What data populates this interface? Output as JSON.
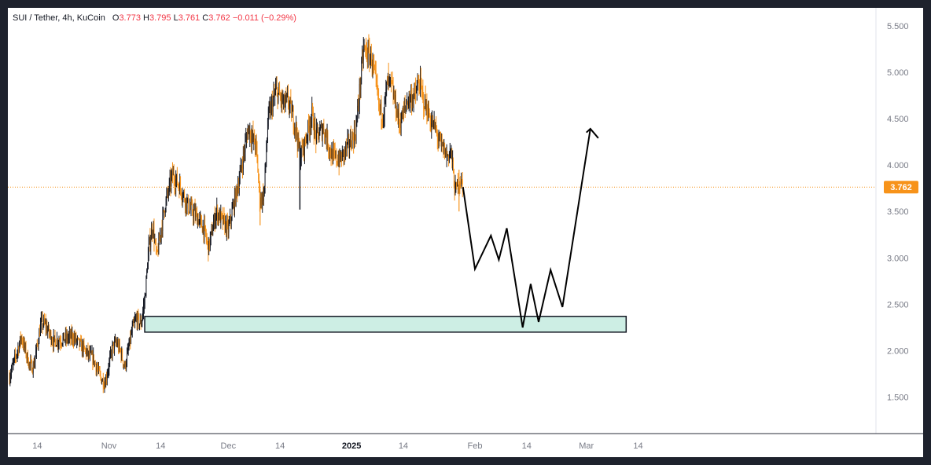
{
  "header": {
    "symbol": "SUI / Tether, 4h, KuCoin",
    "o_label": "O",
    "o_value": "3.773",
    "h_label": "H",
    "h_value": "3.795",
    "l_label": "L",
    "l_value": "3.761",
    "c_label": "C",
    "c_value": "3.762",
    "change": "−0.011 (−0.29%)"
  },
  "colors": {
    "up": "#131722",
    "down": "#f7931a",
    "price_line": "#f7931a",
    "zone_fill": "#cdeee4",
    "zone_stroke": "#131722",
    "projection": "#000000",
    "axis_text": "#787b86"
  },
  "chart_data": {
    "type": "candlestick",
    "symbol": "SUI / Tether",
    "interval": "4h",
    "exchange": "KuCoin",
    "last_price": 3.762,
    "last_price_label": "3.762",
    "y_axis": {
      "ylim": [
        1.2,
        5.6
      ],
      "ticks": [
        {
          "value": 1.5,
          "label": "1.500"
        },
        {
          "value": 2.0,
          "label": "2.000"
        },
        {
          "value": 2.5,
          "label": "2.500"
        },
        {
          "value": 3.0,
          "label": "3.000"
        },
        {
          "value": 3.5,
          "label": "3.500"
        },
        {
          "value": 4.0,
          "label": "4.000"
        },
        {
          "value": 4.5,
          "label": "4.500"
        },
        {
          "value": 5.0,
          "label": "5.000"
        },
        {
          "value": 5.5,
          "label": "5.500"
        }
      ]
    },
    "x_axis": {
      "range": [
        "2024-10-07",
        "2025-03-18"
      ],
      "ticks": [
        {
          "date": "2024-10-14",
          "label": "14",
          "bold": false
        },
        {
          "date": "2024-11-01",
          "label": "Nov",
          "bold": false
        },
        {
          "date": "2024-11-14",
          "label": "14",
          "bold": false
        },
        {
          "date": "2024-12-01",
          "label": "Dec",
          "bold": false
        },
        {
          "date": "2024-12-14",
          "label": "14",
          "bold": false
        },
        {
          "date": "2025-01-01",
          "label": "2025",
          "bold": true
        },
        {
          "date": "2025-01-14",
          "label": "14",
          "bold": false
        },
        {
          "date": "2025-02-01",
          "label": "Feb",
          "bold": false
        },
        {
          "date": "2025-02-14",
          "label": "14",
          "bold": false
        },
        {
          "date": "2025-03-01",
          "label": "Mar",
          "bold": false
        },
        {
          "date": "2025-03-14",
          "label": "14",
          "bold": false
        }
      ]
    },
    "price_path": [
      [
        "2024-10-07",
        1.72
      ],
      [
        "2024-10-09",
        2.0
      ],
      [
        "2024-10-10",
        2.15
      ],
      [
        "2024-10-12",
        1.85
      ],
      [
        "2024-10-13",
        1.82
      ],
      [
        "2024-10-15",
        2.3
      ],
      [
        "2024-10-16",
        2.28
      ],
      [
        "2024-10-18",
        2.1
      ],
      [
        "2024-10-20",
        2.12
      ],
      [
        "2024-10-23",
        2.15
      ],
      [
        "2024-10-25",
        2.05
      ],
      [
        "2024-10-27",
        1.95
      ],
      [
        "2024-10-28",
        1.92
      ],
      [
        "2024-10-30",
        1.7
      ],
      [
        "2024-10-31",
        1.65
      ],
      [
        "2024-11-02",
        2.05
      ],
      [
        "2024-11-03",
        2.08
      ],
      [
        "2024-11-04",
        1.98
      ],
      [
        "2024-11-05",
        1.82
      ],
      [
        "2024-11-07",
        2.25
      ],
      [
        "2024-11-08",
        2.35
      ],
      [
        "2024-11-09",
        2.28
      ],
      [
        "2024-11-10",
        2.55
      ],
      [
        "2024-11-11",
        3.1
      ],
      [
        "2024-11-12",
        3.35
      ],
      [
        "2024-11-13",
        3.0
      ],
      [
        "2024-11-15",
        3.55
      ],
      [
        "2024-11-17",
        3.9
      ],
      [
        "2024-11-19",
        3.75
      ],
      [
        "2024-11-21",
        3.55
      ],
      [
        "2024-11-23",
        3.45
      ],
      [
        "2024-11-25",
        3.3
      ],
      [
        "2024-11-26",
        3.1
      ],
      [
        "2024-11-28",
        3.5
      ],
      [
        "2024-12-01",
        3.3
      ],
      [
        "2024-12-02",
        3.5
      ],
      [
        "2024-12-04",
        3.9
      ],
      [
        "2024-12-06",
        4.4
      ],
      [
        "2024-12-08",
        4.2
      ],
      [
        "2024-12-09",
        3.6
      ],
      [
        "2024-12-10",
        3.7
      ],
      [
        "2024-12-11",
        4.5
      ],
      [
        "2024-12-13",
        4.8
      ],
      [
        "2024-12-15",
        4.65
      ],
      [
        "2024-12-16",
        4.7
      ],
      [
        "2024-12-18",
        4.4
      ],
      [
        "2024-12-19",
        4.1
      ],
      [
        "2024-12-20",
        4.2
      ],
      [
        "2024-12-22",
        4.55
      ],
      [
        "2024-12-23",
        4.3
      ],
      [
        "2024-12-25",
        4.4
      ],
      [
        "2024-12-27",
        4.1
      ],
      [
        "2024-12-29",
        4.05
      ],
      [
        "2024-12-31",
        4.2
      ],
      [
        "2025-01-02",
        4.35
      ],
      [
        "2025-01-03",
        4.8
      ],
      [
        "2025-01-04",
        5.25
      ],
      [
        "2025-01-05",
        5.2
      ],
      [
        "2025-01-06",
        5.15
      ],
      [
        "2025-01-07",
        4.9
      ],
      [
        "2025-01-08",
        4.6
      ],
      [
        "2025-01-09",
        4.55
      ],
      [
        "2025-01-10",
        4.9
      ],
      [
        "2025-01-11",
        4.85
      ],
      [
        "2025-01-12",
        4.65
      ],
      [
        "2025-01-13",
        4.45
      ],
      [
        "2025-01-14",
        4.55
      ],
      [
        "2025-01-15",
        4.7
      ],
      [
        "2025-01-17",
        4.75
      ],
      [
        "2025-01-18",
        4.9
      ],
      [
        "2025-01-19",
        4.7
      ],
      [
        "2025-01-20",
        4.6
      ],
      [
        "2025-01-21",
        4.45
      ],
      [
        "2025-01-22",
        4.4
      ],
      [
        "2025-01-23",
        4.25
      ],
      [
        "2025-01-25",
        4.1
      ],
      [
        "2025-01-26",
        4.15
      ],
      [
        "2025-01-27",
        3.7
      ],
      [
        "2025-01-28",
        3.85
      ],
      [
        "2025-01-29",
        3.762
      ]
    ],
    "annotations": {
      "demand_zone": {
        "y_bottom": 2.2,
        "y_top": 2.37,
        "x_start": "2024-11-10",
        "x_end": "2025-03-11"
      },
      "projection_path": [
        [
          "2025-01-29",
          3.762
        ],
        [
          "2025-02-01",
          2.88
        ],
        [
          "2025-02-05",
          3.24
        ],
        [
          "2025-02-07",
          2.98
        ],
        [
          "2025-02-09",
          3.32
        ],
        [
          "2025-02-13",
          2.25
        ],
        [
          "2025-02-15",
          2.72
        ],
        [
          "2025-02-17",
          2.31
        ],
        [
          "2025-02-20",
          2.87
        ],
        [
          "2025-02-23",
          2.47
        ],
        [
          "2025-03-02",
          4.39
        ]
      ],
      "arrowhead": {
        "left": [
          "2025-03-01",
          4.35
        ],
        "tip": [
          "2025-03-02",
          4.39
        ],
        "right": [
          "2025-03-04",
          4.29
        ]
      }
    }
  }
}
